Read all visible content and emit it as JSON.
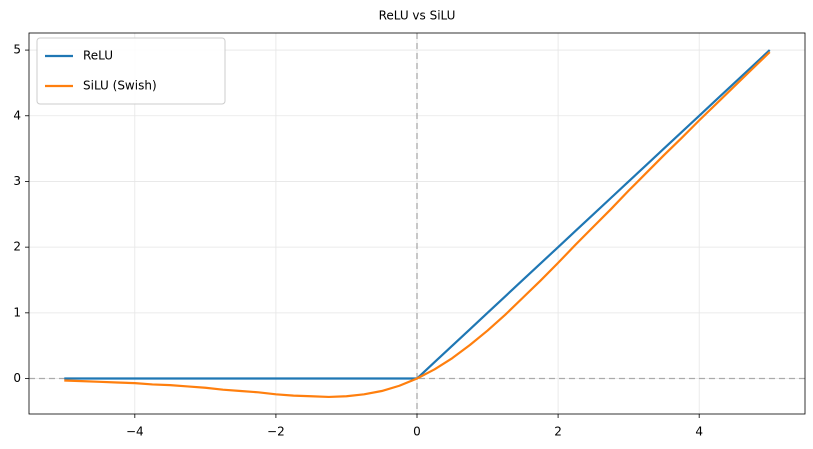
{
  "chart_data": {
    "type": "line",
    "title": "ReLU vs SiLU",
    "x": [
      -5,
      -4.75,
      -4.5,
      -4.25,
      -4,
      -3.75,
      -3.5,
      -3.25,
      -3,
      -2.75,
      -2.5,
      -2.25,
      -2,
      -1.75,
      -1.5,
      -1.25,
      -1,
      -0.75,
      -0.5,
      -0.25,
      0,
      0.25,
      0.5,
      0.75,
      1,
      1.25,
      1.5,
      1.75,
      2,
      2.25,
      2.5,
      2.75,
      3,
      3.25,
      3.5,
      3.75,
      4,
      4.25,
      4.5,
      4.75,
      5
    ],
    "series": [
      {
        "name": "ReLU",
        "color": "#1f77b4",
        "values": [
          0,
          0,
          0,
          0,
          0,
          0,
          0,
          0,
          0,
          0,
          0,
          0,
          0,
          0,
          0,
          0,
          0,
          0,
          0,
          0,
          0,
          0.25,
          0.5,
          0.75,
          1,
          1.25,
          1.5,
          1.75,
          2,
          2.25,
          2.5,
          2.75,
          3,
          3.25,
          3.5,
          3.75,
          4,
          4.25,
          4.5,
          4.75,
          5
        ]
      },
      {
        "name": "SiLU (Swish)",
        "color": "#ff7f0e",
        "values": [
          -0.03,
          -0.04,
          -0.05,
          -0.06,
          -0.07,
          -0.09,
          -0.1,
          -0.12,
          -0.14,
          -0.17,
          -0.19,
          -0.21,
          -0.24,
          -0.26,
          -0.27,
          -0.28,
          -0.27,
          -0.24,
          -0.19,
          -0.11,
          0,
          0.14,
          0.31,
          0.51,
          0.73,
          0.97,
          1.23,
          1.49,
          1.76,
          2.04,
          2.31,
          2.58,
          2.86,
          3.13,
          3.4,
          3.66,
          3.93,
          4.19,
          4.45,
          4.71,
          4.97
        ]
      }
    ],
    "xlim": [
      -5.5,
      5.5
    ],
    "ylim": [
      -0.54,
      5.26
    ],
    "xticks": [
      {
        "value": -4,
        "label": "−4"
      },
      {
        "value": -2,
        "label": "−2"
      },
      0,
      2,
      4
    ],
    "yticks": [
      0,
      1,
      2,
      3,
      4,
      5
    ],
    "grid": true,
    "legend": "upper-left",
    "axhline": 0,
    "axvline": 0
  }
}
